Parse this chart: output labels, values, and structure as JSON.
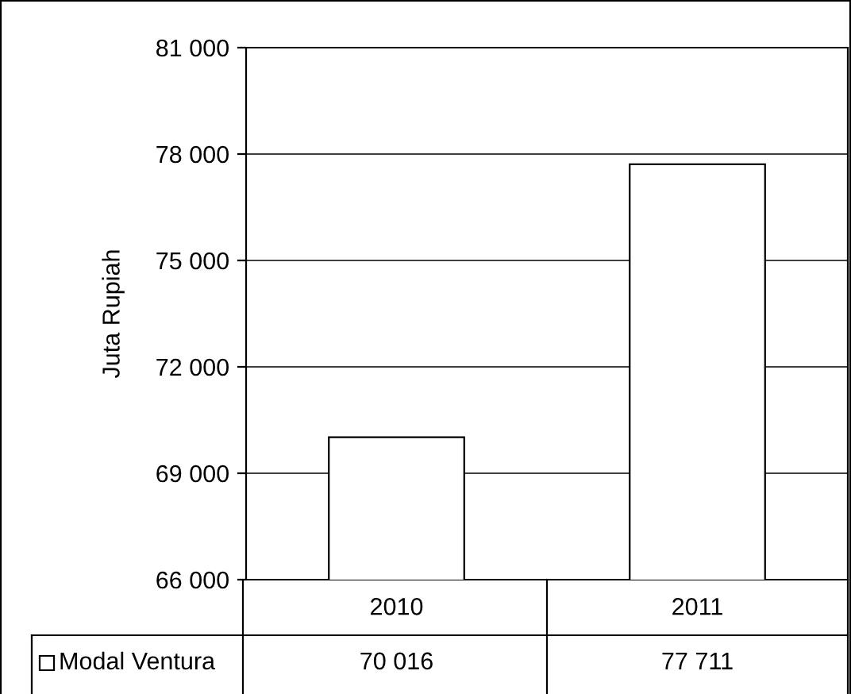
{
  "chart_data": {
    "type": "bar",
    "ylabel": "Juta Rupiah",
    "categories": [
      "2010",
      "2011"
    ],
    "series": [
      {
        "name": "Modal Ventura",
        "color": "#ffffff",
        "values": [
          70016,
          77711
        ]
      }
    ],
    "ylim": [
      66000,
      81000
    ],
    "yticks": [
      {
        "value": 66000,
        "label": "66 000"
      },
      {
        "value": 69000,
        "label": "69 000"
      },
      {
        "value": 72000,
        "label": "72 000"
      },
      {
        "value": 75000,
        "label": "75 000"
      },
      {
        "value": 78000,
        "label": "78 000"
      },
      {
        "value": 81000,
        "label": "81 000"
      }
    ],
    "grid": "y",
    "legend": "bottom",
    "data_labels": true
  }
}
